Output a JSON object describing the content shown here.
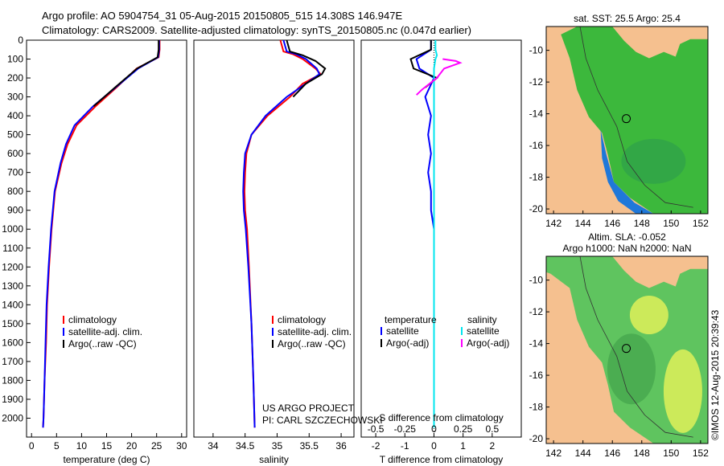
{
  "title": {
    "line1": "Argo profile: AO 5904754_31 05-Aug-2015 20150805_515 14.308S 146.947E",
    "line2": "Climatology: CARS2009. Satellite-adjusted climatology: synTS_20150805.nc (0.047d earlier)"
  },
  "colors": {
    "climatology": "#ff0000",
    "satellite": "#0000ff",
    "argo": "#000000",
    "sal_sat": "#00e5ee",
    "sal_argo": "#ff00ff",
    "land": "#f5c08f"
  },
  "chart_data": [
    {
      "type": "line",
      "panel": "temperature",
      "xlabel": "temperature (deg C)",
      "xlim": [
        -1,
        31
      ],
      "ylim": [
        2100,
        0
      ],
      "xticks": [
        "0",
        "5",
        "10",
        "15",
        "20",
        "25",
        "30"
      ],
      "yticks": [
        "0",
        "100",
        "200",
        "300",
        "400",
        "500",
        "600",
        "700",
        "800",
        "900",
        "1000",
        "1100",
        "1200",
        "1300",
        "1400",
        "1500",
        "1600",
        "1700",
        "1800",
        "1900",
        "2000"
      ],
      "legend": [
        "climatology",
        "satellite-adj. clim.",
        "Argo(..raw -QC)"
      ],
      "series": [
        {
          "name": "climatology",
          "depth": [
            0,
            50,
            90,
            150,
            250,
            350,
            450,
            550,
            650,
            800,
            1000,
            1200,
            1400,
            1600,
            1800,
            2000,
            2050
          ],
          "values": [
            25.6,
            25.6,
            25.4,
            21.0,
            17.0,
            12.8,
            9.0,
            7.2,
            6.0,
            4.7,
            4.0,
            3.5,
            3.1,
            2.9,
            2.6,
            2.4,
            2.3
          ]
        },
        {
          "name": "satellite-adj. clim.",
          "depth": [
            0,
            50,
            90,
            150,
            250,
            350,
            450,
            550,
            650,
            800,
            1000,
            1200,
            1400,
            1600,
            1800,
            2000,
            2050
          ],
          "values": [
            25.5,
            25.5,
            25.3,
            21.3,
            16.8,
            12.3,
            8.6,
            6.9,
            5.8,
            4.6,
            3.9,
            3.4,
            3.0,
            2.8,
            2.6,
            2.4,
            2.3
          ]
        },
        {
          "name": "Argo(..raw -QC)",
          "depth": [
            0,
            50,
            90,
            150,
            250,
            350
          ],
          "values": [
            25.4,
            25.4,
            25.2,
            21.1,
            16.7,
            12.4
          ]
        }
      ]
    },
    {
      "type": "line",
      "panel": "salinity",
      "xlabel": "salinity",
      "xlim": [
        33.7,
        36.2
      ],
      "ylim": [
        2100,
        0
      ],
      "xticks": [
        "34",
        "34.5",
        "35",
        "35.5",
        "36"
      ],
      "legend": [
        "climatology",
        "satellite-adj. clim.",
        "Argo(..raw -QC)"
      ],
      "series": [
        {
          "name": "climatology",
          "depth": [
            0,
            60,
            75,
            100,
            150,
            180,
            230,
            300,
            400,
            500,
            600,
            700,
            800,
            900,
            1000,
            1200,
            1500,
            1800,
            2050
          ],
          "values": [
            35.05,
            35.1,
            35.25,
            35.4,
            35.6,
            35.68,
            35.4,
            35.2,
            34.85,
            34.6,
            34.52,
            34.5,
            34.49,
            34.5,
            34.53,
            34.56,
            34.6,
            34.63,
            34.65
          ]
        },
        {
          "name": "satellite-adj. clim.",
          "depth": [
            0,
            60,
            75,
            100,
            150,
            180,
            230,
            300,
            400,
            500,
            600,
            700,
            800,
            900,
            1000,
            1200,
            1500,
            1800,
            2050
          ],
          "values": [
            35.1,
            35.15,
            35.3,
            35.45,
            35.62,
            35.66,
            35.45,
            35.15,
            34.82,
            34.6,
            34.5,
            34.48,
            34.47,
            34.48,
            34.51,
            34.55,
            34.6,
            34.63,
            34.65
          ]
        },
        {
          "name": "Argo(..raw -QC)",
          "depth": [
            0,
            60,
            80,
            110,
            150,
            180,
            230,
            300
          ],
          "values": [
            35.15,
            35.2,
            35.4,
            35.6,
            35.75,
            35.7,
            35.45,
            35.25
          ]
        }
      ]
    },
    {
      "type": "line",
      "panel": "difference",
      "xlabel": "T difference from climatology",
      "xlabel2": "S difference from climatology",
      "xlim": [
        -2.5,
        3.0
      ],
      "ylim": [
        2100,
        0
      ],
      "xticks": [
        "-2",
        "-1",
        "0",
        "1",
        "2"
      ],
      "xticks2": [
        "-0.5",
        "-0.25",
        "0",
        "0.25",
        "0.5"
      ],
      "legend_headers": [
        "temperature",
        "salinity"
      ],
      "legend": [
        "satellite",
        "Argo(-adj)",
        "satellite",
        "Argo(-adj)"
      ],
      "series": [
        {
          "name": "temperature satellite",
          "depth": [
            0,
            50,
            100,
            150,
            200,
            300,
            400,
            500,
            600,
            700,
            800,
            900,
            1000,
            1100
          ],
          "values": [
            -0.1,
            -0.1,
            -0.6,
            -0.5,
            0.0,
            -0.3,
            -0.1,
            -0.2,
            -0.1,
            -0.2,
            -0.1,
            -0.1,
            0.0,
            0.0
          ]
        },
        {
          "name": "temperature Argo(-adj)",
          "depth": [
            0,
            50,
            100,
            150,
            200,
            250
          ],
          "values": [
            -0.1,
            -0.1,
            -0.8,
            -0.7,
            0.1,
            -0.3
          ]
        },
        {
          "name": "salinity satellite",
          "depth": [
            0,
            50,
            80,
            100,
            150,
            200,
            400,
            600,
            800,
            1000,
            1400,
            2050
          ],
          "values": [
            0.05,
            0.05,
            0.1,
            0.05,
            0.0,
            0.0,
            0.0,
            0.0,
            0.0,
            0.0,
            0.0,
            0.0
          ]
        },
        {
          "name": "salinity Argo(-adj)",
          "depth": [
            100,
            110,
            120,
            150,
            200,
            260,
            290
          ],
          "values": [
            0.3,
            0.75,
            0.9,
            0.35,
            0.1,
            -0.4,
            -0.6
          ]
        }
      ]
    },
    {
      "type": "heatmap",
      "panel": "sst-map",
      "title": "sat. SST: 25.5 Argo: 25.4",
      "xticks": [
        "142",
        "144",
        "146",
        "148",
        "150",
        "152"
      ],
      "yticks": [
        "-10",
        "-12",
        "-14",
        "-16",
        "-18",
        "-20"
      ],
      "xlim": [
        141.5,
        152.5
      ],
      "ylim": [
        -20.3,
        -8.5
      ],
      "marker": {
        "lon": 146.947,
        "lat": -14.308
      }
    },
    {
      "type": "heatmap",
      "panel": "sla-map",
      "title": "Altim. SLA: -0.052",
      "subtitle": "Argo h1000: NaN h2000: NaN",
      "xticks": [
        "142",
        "144",
        "146",
        "148",
        "150",
        "152"
      ],
      "yticks": [
        "-10",
        "-12",
        "-14",
        "-16",
        "-18",
        "-20"
      ],
      "xlim": [
        141.5,
        152.5
      ],
      "ylim": [
        -20.3,
        -8.5
      ],
      "marker": {
        "lon": 146.947,
        "lat": -14.308
      }
    }
  ],
  "annotations": {
    "project": "US ARGO PROJECT",
    "pi": "PI: CARL SZCZECHOWSKI",
    "credit": "©IMOS 12-Aug-2015 20:39:43"
  }
}
